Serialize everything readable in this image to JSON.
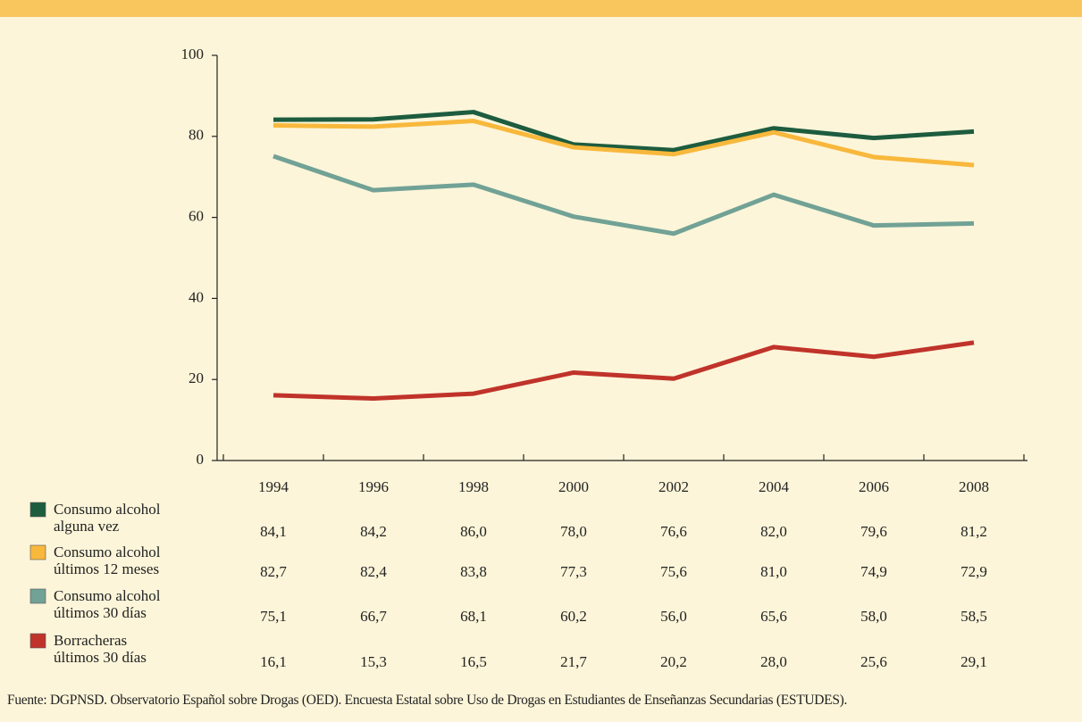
{
  "chart_data": {
    "type": "line",
    "categories": [
      "1994",
      "1996",
      "1998",
      "2000",
      "2002",
      "2004",
      "2006",
      "2008"
    ],
    "ylim": [
      0,
      100
    ],
    "yticks": [
      0,
      20,
      40,
      60,
      80,
      100
    ],
    "series": [
      {
        "name": "Consumo alcohol alguna vez",
        "color": "#1d5c3f",
        "values": [
          84.1,
          84.2,
          86.0,
          78.0,
          76.6,
          82.0,
          79.6,
          81.2
        ],
        "value_labels": [
          "84,1",
          "84,2",
          "86,0",
          "78,0",
          "76,6",
          "82,0",
          "79,6",
          "81,2"
        ]
      },
      {
        "name": "Consumo alcohol últimos 12 meses",
        "color": "#f7b83c",
        "values": [
          82.7,
          82.4,
          83.8,
          77.3,
          75.6,
          81.0,
          74.9,
          72.9
        ],
        "value_labels": [
          "82,7",
          "82,4",
          "83,8",
          "77,3",
          "75,6",
          "81,0",
          "74,9",
          "72,9"
        ]
      },
      {
        "name": "Consumo alcohol últimos 30 días",
        "color": "#72a295",
        "values": [
          75.1,
          66.7,
          68.1,
          60.2,
          56.0,
          65.6,
          58.0,
          58.5
        ],
        "value_labels": [
          "75,1",
          "66,7",
          "68,1",
          "60,2",
          "56,0",
          "65,6",
          "58,0",
          "58,5"
        ]
      },
      {
        "name": "Borracheras últimos 30 días",
        "color": "#c0332a",
        "values": [
          16.1,
          15.3,
          16.5,
          21.7,
          20.2,
          28.0,
          25.6,
          29.1
        ],
        "value_labels": [
          "16,1",
          "15,3",
          "16,5",
          "21,7",
          "20,2",
          "28,0",
          "25,6",
          "29,1"
        ]
      }
    ],
    "source": "Fuente: DGPNSD. Observatorio Español sobre Drogas (OED). Encuesta Estatal sobre Uso de Drogas en Estudiantes de Enseñanzas Secundarias (ESTUDES)."
  }
}
